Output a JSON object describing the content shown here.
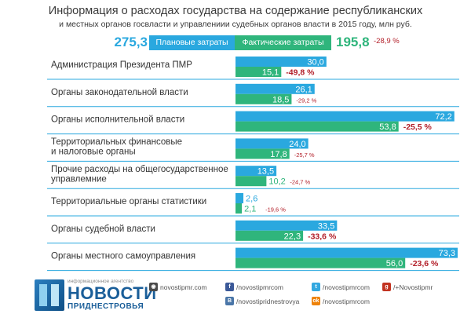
{
  "header": {
    "title": "Информация о расходах государства на содержание республиканских",
    "subtitle": "и местных органов госвласти и управлениии судебных органов власти в 2015 году, млн руб."
  },
  "totals": {
    "planned": "275,3",
    "actual": "195,8",
    "change": "-28,9 %"
  },
  "legend": {
    "planned_label": "Плановые затраты",
    "actual_label": "Фактические затраты"
  },
  "colors": {
    "planned": "#2aa8df",
    "actual": "#2fb57c",
    "change": "#b3202a",
    "label_text": "#333333",
    "row_line": "#2aa8df"
  },
  "chart_data": {
    "type": "bar",
    "orientation": "horizontal",
    "units": "млн руб.",
    "series": [
      {
        "name": "Плановые затраты",
        "values": [
          30.0,
          26.1,
          72.2,
          24.0,
          13.5,
          2.6,
          33.5,
          73.3
        ]
      },
      {
        "name": "Фактические затраты",
        "values": [
          15.1,
          18.5,
          53.8,
          17.8,
          10.2,
          2.1,
          22.3,
          56.0
        ]
      }
    ],
    "categories": [
      [
        "Администрация Президента ПМР"
      ],
      [
        "Органы законодательной власти"
      ],
      [
        "Органы исполнительной власти"
      ],
      [
        "Территориальных финансовые",
        "и налоговые органы"
      ],
      [
        "Прочие расходы на общегосударственное",
        "управлемние"
      ],
      [
        "Территориальные органы статистики"
      ],
      [
        "Органы судебной власти"
      ],
      [
        "Органы местного самоуправления"
      ]
    ],
    "planned_labels": [
      "30,0",
      "26,1",
      "72,2",
      "24,0",
      "13,5",
      "2,6",
      "33,5",
      "73,3"
    ],
    "actual_labels": [
      "15,1",
      "18,5",
      "53,8",
      "17,8",
      "10,2",
      "2,1",
      "22,3",
      "56,0"
    ],
    "change_labels": [
      "-49,8 %",
      "-29,2 %",
      "-25,5 %",
      "-25,7 %",
      "-24,7 %",
      "-19,6 %",
      "-33,6 %",
      "-23,6 %"
    ],
    "change_emphasis": [
      true,
      false,
      true,
      false,
      false,
      false,
      true,
      true
    ],
    "xlim": [
      0,
      73.3
    ],
    "grid": false,
    "legend": "top"
  },
  "footer": {
    "logo_tagline": "информационное агентство",
    "logo_name": "НОВОСТИ",
    "logo_sub": "ПРИДНЕСТРОВЬЯ",
    "social": [
      {
        "icon": "camera-icon",
        "icon_glyph": "◉",
        "color": "#4a4a4a",
        "text": "novostipmr.com"
      },
      {
        "icon": "facebook-icon",
        "icon_glyph": "f",
        "color": "#3b5998",
        "text": "/novostipmrcom"
      },
      {
        "icon": "twitter-icon",
        "icon_glyph": "t",
        "color": "#33a8e0",
        "text": "/novostipmrcom"
      },
      {
        "icon": "google-plus-icon",
        "icon_glyph": "g",
        "color": "#c23321",
        "text": "/+Novostipmr"
      },
      {
        "icon": "vk-icon",
        "icon_glyph": "B",
        "color": "#4a76a8",
        "text": "/novostipridnestrovya"
      },
      {
        "icon": "odnoklassniki-icon",
        "icon_glyph": "ok",
        "color": "#ee8208",
        "text": "/novostipmrcom"
      }
    ]
  }
}
